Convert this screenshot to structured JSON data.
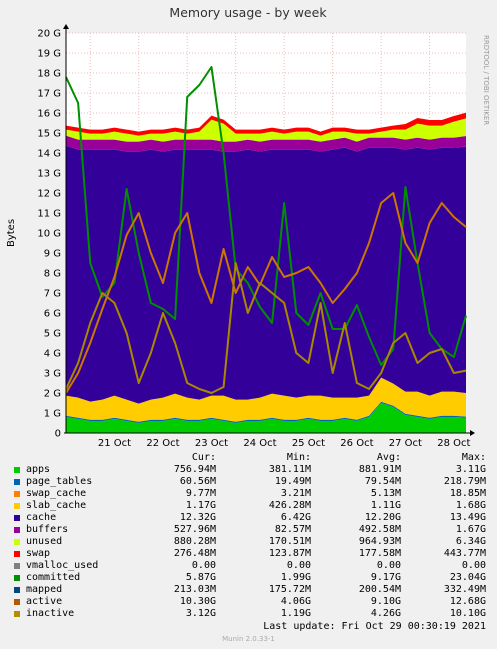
{
  "chart_data": {
    "type": "area",
    "title": "Memory usage - by week",
    "ylabel": "Bytes",
    "xlabel": "",
    "ylim": [
      0,
      20
    ],
    "y_unit": "G",
    "y_ticks": [
      "0",
      "1 G",
      "2 G",
      "3 G",
      "4 G",
      "5 G",
      "6 G",
      "7 G",
      "8 G",
      "9 G",
      "10 G",
      "11 G",
      "12 G",
      "13 G",
      "14 G",
      "15 G",
      "16 G",
      "17 G",
      "18 G",
      "19 G",
      "20 G"
    ],
    "x_ticks": [
      "21 Oct",
      "22 Oct",
      "23 Oct",
      "24 Oct",
      "25 Oct",
      "26 Oct",
      "27 Oct",
      "28 Oct"
    ],
    "grid": true,
    "watermark": "RRDTOOL / TOBI OETIKER",
    "x_days": [
      20.5,
      20.75,
      21.0,
      21.25,
      21.5,
      21.75,
      22.0,
      22.25,
      22.5,
      22.75,
      23.0,
      23.25,
      23.5,
      23.75,
      24.0,
      24.25,
      24.5,
      24.75,
      25.0,
      25.25,
      25.5,
      25.75,
      26.0,
      26.25,
      26.5,
      26.75,
      27.0,
      27.25,
      27.5,
      27.75,
      28.0,
      28.25,
      28.5,
      28.75
    ],
    "stacked_series": [
      {
        "name": "apps",
        "color": "#00cc00",
        "values": [
          0.8,
          0.7,
          0.6,
          0.6,
          0.7,
          0.6,
          0.5,
          0.6,
          0.6,
          0.7,
          0.6,
          0.6,
          0.7,
          0.6,
          0.5,
          0.6,
          0.6,
          0.7,
          0.6,
          0.6,
          0.7,
          0.6,
          0.6,
          0.7,
          0.6,
          0.8,
          1.5,
          1.3,
          0.9,
          0.8,
          0.7,
          0.8,
          0.8,
          0.76
        ]
      },
      {
        "name": "page_tables",
        "color": "#0066b3",
        "values": [
          0.06,
          0.06,
          0.06,
          0.06,
          0.06,
          0.06,
          0.06,
          0.06,
          0.06,
          0.06,
          0.06,
          0.06,
          0.06,
          0.06,
          0.06,
          0.06,
          0.06,
          0.06,
          0.06,
          0.06,
          0.06,
          0.06,
          0.06,
          0.06,
          0.06,
          0.06,
          0.06,
          0.06,
          0.06,
          0.06,
          0.06,
          0.06,
          0.06,
          0.06
        ]
      },
      {
        "name": "swap_cache",
        "color": "#ff8000",
        "values": [
          0.01,
          0.01,
          0.01,
          0.01,
          0.01,
          0.01,
          0.01,
          0.01,
          0.01,
          0.01,
          0.01,
          0.01,
          0.01,
          0.01,
          0.01,
          0.01,
          0.01,
          0.01,
          0.01,
          0.01,
          0.01,
          0.01,
          0.01,
          0.01,
          0.01,
          0.01,
          0.01,
          0.01,
          0.01,
          0.01,
          0.01,
          0.01,
          0.01,
          0.01
        ]
      },
      {
        "name": "slab_cache",
        "color": "#ffcc00",
        "values": [
          1.0,
          1.0,
          0.9,
          1.0,
          1.1,
          1.0,
          0.9,
          1.0,
          1.1,
          1.2,
          1.1,
          1.0,
          1.1,
          1.2,
          1.1,
          1.0,
          1.1,
          1.2,
          1.2,
          1.1,
          1.1,
          1.2,
          1.1,
          1.0,
          1.1,
          1.0,
          1.2,
          1.1,
          1.1,
          1.2,
          1.1,
          1.2,
          1.2,
          1.17
        ]
      },
      {
        "name": "cache",
        "color": "#330099",
        "values": [
          12.5,
          12.4,
          12.6,
          12.5,
          12.3,
          12.4,
          12.6,
          12.5,
          12.3,
          12.2,
          12.4,
          12.5,
          12.3,
          12.2,
          12.4,
          12.5,
          12.3,
          12.2,
          12.3,
          12.4,
          12.3,
          12.2,
          12.4,
          12.5,
          12.3,
          12.4,
          11.5,
          11.8,
          12.1,
          12.2,
          12.3,
          12.2,
          12.2,
          12.32
        ]
      },
      {
        "name": "buffers",
        "color": "#990099",
        "values": [
          0.5,
          0.5,
          0.5,
          0.5,
          0.5,
          0.5,
          0.5,
          0.5,
          0.5,
          0.5,
          0.5,
          0.5,
          0.5,
          0.5,
          0.5,
          0.5,
          0.5,
          0.5,
          0.5,
          0.5,
          0.5,
          0.5,
          0.5,
          0.5,
          0.5,
          0.5,
          0.5,
          0.5,
          0.5,
          0.5,
          0.5,
          0.5,
          0.5,
          0.53
        ]
      },
      {
        "name": "unused",
        "color": "#ccff00",
        "values": [
          0.3,
          0.4,
          0.3,
          0.3,
          0.4,
          0.4,
          0.3,
          0.3,
          0.4,
          0.4,
          0.3,
          0.4,
          1.0,
          0.9,
          0.4,
          0.3,
          0.4,
          0.4,
          0.3,
          0.4,
          0.4,
          0.3,
          0.4,
          0.3,
          0.4,
          0.2,
          0.3,
          0.4,
          0.5,
          0.7,
          0.7,
          0.6,
          0.8,
          0.88
        ]
      },
      {
        "name": "swap",
        "color": "#ff0000",
        "values": [
          0.2,
          0.2,
          0.2,
          0.2,
          0.2,
          0.2,
          0.2,
          0.2,
          0.2,
          0.2,
          0.2,
          0.2,
          0.2,
          0.2,
          0.2,
          0.2,
          0.2,
          0.2,
          0.2,
          0.2,
          0.2,
          0.2,
          0.2,
          0.2,
          0.2,
          0.2,
          0.2,
          0.2,
          0.28,
          0.28,
          0.28,
          0.28,
          0.28,
          0.28
        ]
      }
    ],
    "line_series": [
      {
        "name": "committed",
        "color": "#008f00",
        "values": [
          17.8,
          16.5,
          8.5,
          6.8,
          7.5,
          12.2,
          9.0,
          6.5,
          6.2,
          5.7,
          16.8,
          17.4,
          18.3,
          14.0,
          8.2,
          7.5,
          6.3,
          5.5,
          11.5,
          6.0,
          5.4,
          7.0,
          5.2,
          5.2,
          6.4,
          4.8,
          3.4,
          4.2,
          12.3,
          8.5,
          5.0,
          4.2,
          3.8,
          5.87
        ]
      },
      {
        "name": "active",
        "color": "#cc7700",
        "values": [
          2.0,
          3.0,
          4.5,
          6.2,
          7.8,
          9.9,
          11.0,
          9.0,
          7.5,
          10.0,
          11.0,
          8.0,
          6.5,
          9.2,
          7.0,
          8.3,
          7.4,
          8.8,
          7.8,
          8.0,
          8.3,
          7.5,
          6.5,
          7.2,
          8.0,
          9.5,
          11.5,
          12.0,
          9.5,
          8.5,
          10.5,
          11.5,
          10.8,
          10.3
        ]
      },
      {
        "name": "inactive",
        "color": "#aa8800",
        "values": [
          2.2,
          3.5,
          5.5,
          7.0,
          6.5,
          5.0,
          2.5,
          4.0,
          6.0,
          4.5,
          2.5,
          2.2,
          2.0,
          2.3,
          8.5,
          6.0,
          7.5,
          7.0,
          6.5,
          4.0,
          3.5,
          6.5,
          3.0,
          5.5,
          2.5,
          2.2,
          3.0,
          4.5,
          5.0,
          3.5,
          4.0,
          4.2,
          3.0,
          3.12
        ]
      }
    ],
    "legend_columns": [
      "Cur:",
      "Min:",
      "Avg:",
      "Max:"
    ],
    "legend": [
      {
        "name": "apps",
        "color": "#00cc00",
        "cur": "756.94M",
        "min": "381.11M",
        "avg": "881.91M",
        "max": "3.11G"
      },
      {
        "name": "page_tables",
        "color": "#0066b3",
        "cur": "60.56M",
        "min": "19.49M",
        "avg": "79.54M",
        "max": "218.79M"
      },
      {
        "name": "swap_cache",
        "color": "#ff8000",
        "cur": "9.77M",
        "min": "3.21M",
        "avg": "5.13M",
        "max": "18.85M"
      },
      {
        "name": "slab_cache",
        "color": "#ffcc00",
        "cur": "1.17G",
        "min": "426.28M",
        "avg": "1.11G",
        "max": "1.68G"
      },
      {
        "name": "cache",
        "color": "#330099",
        "cur": "12.32G",
        "min": "6.42G",
        "avg": "12.20G",
        "max": "13.49G"
      },
      {
        "name": "buffers",
        "color": "#990099",
        "cur": "527.96M",
        "min": "82.57M",
        "avg": "492.58M",
        "max": "1.67G"
      },
      {
        "name": "unused",
        "color": "#ccff00",
        "cur": "880.28M",
        "min": "170.51M",
        "avg": "964.93M",
        "max": "6.34G"
      },
      {
        "name": "swap",
        "color": "#ff0000",
        "cur": "276.48M",
        "min": "123.87M",
        "avg": "177.58M",
        "max": "443.77M"
      },
      {
        "name": "vmalloc_used",
        "color": "#808080",
        "cur": "0.00",
        "min": "0.00",
        "avg": "0.00",
        "max": "0.00"
      },
      {
        "name": "committed",
        "color": "#008f00",
        "cur": "5.87G",
        "min": "1.99G",
        "avg": "9.17G",
        "max": "23.04G"
      },
      {
        "name": "mapped",
        "color": "#00487d",
        "cur": "213.03M",
        "min": "175.72M",
        "avg": "200.54M",
        "max": "332.49M"
      },
      {
        "name": "active",
        "color": "#b35a00",
        "cur": "10.30G",
        "min": "4.06G",
        "avg": "9.10G",
        "max": "12.68G"
      },
      {
        "name": "inactive",
        "color": "#b38f00",
        "cur": "3.12G",
        "min": "1.19G",
        "avg": "4.26G",
        "max": "10.10G"
      }
    ]
  },
  "footer": {
    "last_update": "Last update: Fri Oct 29 00:30:19 2021",
    "version": "Munin 2.0.33-1"
  }
}
